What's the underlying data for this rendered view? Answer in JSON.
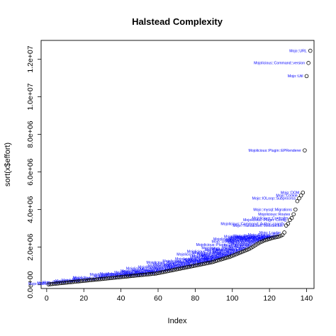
{
  "chart_data": {
    "type": "scatter",
    "title": "Halstead Complexity",
    "xlabel": "Index",
    "ylabel": "sort(x$effort)",
    "xlim": [
      -3,
      144
    ],
    "ylim": [
      -200000,
      13000000
    ],
    "x_ticks": [
      0,
      20,
      40,
      60,
      80,
      100,
      120,
      140
    ],
    "x_tick_labels": [
      "0",
      "20",
      "40",
      "60",
      "80",
      "100",
      "120",
      "140"
    ],
    "y_ticks": [
      0,
      2000000,
      4000000,
      6000000,
      8000000,
      10000000,
      12000000
    ],
    "y_tick_labels": [
      "0.0e+00",
      "2.0e+06",
      "4.0e+06",
      "6.0e+06",
      "8.0e+06",
      "1.0e+07",
      "1.2e+07"
    ],
    "label_color": "#0000ff",
    "point_color": "#000000",
    "points": [
      {
        "x": 1,
        "y": 20000
      },
      {
        "x": 2,
        "y": 30000
      },
      {
        "x": 3,
        "y": 40000
      },
      {
        "x": 4,
        "y": 50000
      },
      {
        "x": 5,
        "y": 60000
      },
      {
        "x": 6,
        "y": 70000
      },
      {
        "x": 7,
        "y": 80000
      },
      {
        "x": 8,
        "y": 90000
      },
      {
        "x": 9,
        "y": 100000
      },
      {
        "x": 10,
        "y": 110000
      },
      {
        "x": 11,
        "y": 120000
      },
      {
        "x": 12,
        "y": 130000
      },
      {
        "x": 13,
        "y": 140000
      },
      {
        "x": 14,
        "y": 150000
      },
      {
        "x": 15,
        "y": 160000
      },
      {
        "x": 16,
        "y": 170000
      },
      {
        "x": 17,
        "y": 180000
      },
      {
        "x": 18,
        "y": 190000
      },
      {
        "x": 19,
        "y": 200000
      },
      {
        "x": 20,
        "y": 210000
      },
      {
        "x": 21,
        "y": 220000
      },
      {
        "x": 22,
        "y": 230000
      },
      {
        "x": 23,
        "y": 240000
      },
      {
        "x": 24,
        "y": 250000
      },
      {
        "x": 25,
        "y": 260000
      },
      {
        "x": 26,
        "y": 270000
      },
      {
        "x": 27,
        "y": 280000
      },
      {
        "x": 28,
        "y": 290000
      },
      {
        "x": 29,
        "y": 300000
      },
      {
        "x": 30,
        "y": 310000
      },
      {
        "x": 31,
        "y": 320000
      },
      {
        "x": 32,
        "y": 330000
      },
      {
        "x": 33,
        "y": 340000
      },
      {
        "x": 34,
        "y": 350000
      },
      {
        "x": 35,
        "y": 360000
      },
      {
        "x": 36,
        "y": 370000
      },
      {
        "x": 37,
        "y": 380000
      },
      {
        "x": 38,
        "y": 390000
      },
      {
        "x": 39,
        "y": 400000
      },
      {
        "x": 40,
        "y": 410000
      },
      {
        "x": 41,
        "y": 420000
      },
      {
        "x": 42,
        "y": 430000
      },
      {
        "x": 43,
        "y": 440000
      },
      {
        "x": 44,
        "y": 450000
      },
      {
        "x": 45,
        "y": 460000
      },
      {
        "x": 46,
        "y": 470000
      },
      {
        "x": 47,
        "y": 480000
      },
      {
        "x": 48,
        "y": 490000
      },
      {
        "x": 49,
        "y": 500000
      },
      {
        "x": 50,
        "y": 510000
      },
      {
        "x": 51,
        "y": 520000
      },
      {
        "x": 52,
        "y": 530000
      },
      {
        "x": 53,
        "y": 540000
      },
      {
        "x": 54,
        "y": 550000
      },
      {
        "x": 55,
        "y": 560000
      },
      {
        "x": 56,
        "y": 570000
      },
      {
        "x": 57,
        "y": 580000
      },
      {
        "x": 58,
        "y": 590000
      },
      {
        "x": 59,
        "y": 600000
      },
      {
        "x": 60,
        "y": 620000
      },
      {
        "x": 61,
        "y": 640000
      },
      {
        "x": 62,
        "y": 660000
      },
      {
        "x": 63,
        "y": 680000
      },
      {
        "x": 64,
        "y": 700000
      },
      {
        "x": 65,
        "y": 720000
      },
      {
        "x": 66,
        "y": 740000
      },
      {
        "x": 67,
        "y": 760000
      },
      {
        "x": 68,
        "y": 780000
      },
      {
        "x": 69,
        "y": 800000
      },
      {
        "x": 70,
        "y": 820000
      },
      {
        "x": 71,
        "y": 840000
      },
      {
        "x": 72,
        "y": 860000
      },
      {
        "x": 73,
        "y": 880000
      },
      {
        "x": 74,
        "y": 900000
      },
      {
        "x": 75,
        "y": 920000
      },
      {
        "x": 76,
        "y": 940000
      },
      {
        "x": 77,
        "y": 960000
      },
      {
        "x": 78,
        "y": 980000
      },
      {
        "x": 79,
        "y": 1000000
      },
      {
        "x": 80,
        "y": 1020000
      },
      {
        "x": 81,
        "y": 1040000
      },
      {
        "x": 82,
        "y": 1060000
      },
      {
        "x": 83,
        "y": 1080000
      },
      {
        "x": 84,
        "y": 1100000
      },
      {
        "x": 85,
        "y": 1120000
      },
      {
        "x": 86,
        "y": 1140000
      },
      {
        "x": 87,
        "y": 1160000
      },
      {
        "x": 88,
        "y": 1180000
      },
      {
        "x": 89,
        "y": 1200000
      },
      {
        "x": 90,
        "y": 1230000
      },
      {
        "x": 91,
        "y": 1260000
      },
      {
        "x": 92,
        "y": 1290000
      },
      {
        "x": 93,
        "y": 1320000
      },
      {
        "x": 94,
        "y": 1350000
      },
      {
        "x": 95,
        "y": 1380000
      },
      {
        "x": 96,
        "y": 1410000
      },
      {
        "x": 97,
        "y": 1440000
      },
      {
        "x": 98,
        "y": 1470000
      },
      {
        "x": 99,
        "y": 1500000
      },
      {
        "x": 100,
        "y": 1540000
      },
      {
        "x": 101,
        "y": 1580000
      },
      {
        "x": 102,
        "y": 1620000
      },
      {
        "x": 103,
        "y": 1660000
      },
      {
        "x": 104,
        "y": 1700000
      },
      {
        "x": 105,
        "y": 1740000
      },
      {
        "x": 106,
        "y": 1780000
      },
      {
        "x": 107,
        "y": 1820000
      },
      {
        "x": 108,
        "y": 1860000
      },
      {
        "x": 109,
        "y": 1900000
      },
      {
        "x": 110,
        "y": 1960000
      },
      {
        "x": 111,
        "y": 2020000
      },
      {
        "x": 112,
        "y": 2080000
      },
      {
        "x": 113,
        "y": 2140000
      },
      {
        "x": 114,
        "y": 2200000
      },
      {
        "x": 115,
        "y": 2260000
      },
      {
        "x": 116,
        "y": 2300000
      },
      {
        "x": 117,
        "y": 2350000
      },
      {
        "x": 118,
        "y": 2380000
      },
      {
        "x": 119,
        "y": 2410000
      },
      {
        "x": 120,
        "y": 2440000
      },
      {
        "x": 121,
        "y": 2470000
      },
      {
        "x": 122,
        "y": 2500000
      },
      {
        "x": 123,
        "y": 2520000
      },
      {
        "x": 124,
        "y": 2540000
      },
      {
        "x": 125,
        "y": 2560000
      },
      {
        "x": 126,
        "y": 2600000
      },
      {
        "x": 127,
        "y": 2650000
      },
      {
        "x": 128,
        "y": 2780000
      },
      {
        "x": 129,
        "y": 3150000
      },
      {
        "x": 130,
        "y": 3250000
      },
      {
        "x": 131,
        "y": 3450000
      },
      {
        "x": 132,
        "y": 3550000
      },
      {
        "x": 133,
        "y": 3750000
      },
      {
        "x": 134,
        "y": 4000000
      },
      {
        "x": 135,
        "y": 4450000
      },
      {
        "x": 136,
        "y": 4600000
      },
      {
        "x": 137,
        "y": 4750000
      },
      {
        "x": 138,
        "y": 4900000
      },
      {
        "x": 139,
        "y": 7150000
      },
      {
        "x": 140,
        "y": 11100000
      },
      {
        "x": 141,
        "y": 11800000
      },
      {
        "x": 142,
        "y": 12450000
      }
    ],
    "labels": [
      {
        "x": 142,
        "y": 12450000,
        "text": "Mojo::URL"
      },
      {
        "x": 141,
        "y": 11800000,
        "text": "Mojolicious::Command::version"
      },
      {
        "x": 140,
        "y": 11100000,
        "text": "Mojo::Util"
      },
      {
        "x": 139,
        "y": 7150000,
        "text": "Mojolicious::Plugin::EPRenderer"
      },
      {
        "x": 138,
        "y": 4900000,
        "text": "Mojo::DOM"
      },
      {
        "x": 137,
        "y": 4750000,
        "text": "Mojo::Cookie"
      },
      {
        "x": 136,
        "y": 4600000,
        "text": "Mojo::IOLoop::Subprocess"
      },
      {
        "x": 134,
        "y": 4000000,
        "text": "Mojo::mysql::Migrations"
      },
      {
        "x": 128,
        "y": 2780000,
        "text": "Mojo::Loader"
      },
      {
        "x": 133,
        "y": 3750000,
        "text": "Mojolicious::Routes"
      },
      {
        "x": 132,
        "y": 3550000,
        "text": "Mojolicious::Controller"
      },
      {
        "x": 131,
        "y": 3450000,
        "text": "Mojolicious::Plugin::Config"
      },
      {
        "x": 130,
        "y": 3250000,
        "text": "Mojolicious::Command::Author::cpanify"
      },
      {
        "x": 129,
        "y": 3150000,
        "text": "Mojo::Transaction::WebSocket"
      },
      {
        "x": 127,
        "y": 2650000,
        "text": "Mojo::Reactor::Poll"
      },
      {
        "x": 126,
        "y": 2600000,
        "text": "Mojo::Message::Response"
      },
      {
        "x": 125,
        "y": 2560000,
        "text": "Mojolicious::Plugin::TagHelpers"
      },
      {
        "x": 124,
        "y": 2540000,
        "text": "Mojo::Server::Daemon"
      },
      {
        "x": 123,
        "y": 2520000,
        "text": "Mojo::Message::Request"
      },
      {
        "x": 122,
        "y": 2500000,
        "text": "Mojolicious::Validator"
      },
      {
        "x": 121,
        "y": 2470000,
        "text": "Mojo::Content::MultiPart"
      },
      {
        "x": 120,
        "y": 2440000,
        "text": "Mojolicious::Command::daemon"
      },
      {
        "x": 119,
        "y": 2410000,
        "text": "Mojo::Server::Prefork"
      },
      {
        "x": 118,
        "y": 2380000,
        "text": "Mojo::IOLoop::Stream"
      },
      {
        "x": 117,
        "y": 2350000,
        "text": "Mojolicious::Renderer"
      },
      {
        "x": 116,
        "y": 2300000,
        "text": "Mojo::UserAgent::Transactor"
      },
      {
        "x": 115,
        "y": 2260000,
        "text": "Mojolicious::Static"
      },
      {
        "x": 114,
        "y": 2200000,
        "text": "Mojo::Headers"
      },
      {
        "x": 113,
        "y": 2140000,
        "text": "Mojolicious::Plugin::DefaultHelpers"
      },
      {
        "x": 112,
        "y": 2080000,
        "text": "Mojo::Asset::File"
      },
      {
        "x": 111,
        "y": 2020000,
        "text": "Mojo::JSON"
      },
      {
        "x": 110,
        "y": 1960000,
        "text": "Mojolicious::Routes::Pattern"
      },
      {
        "x": 109,
        "y": 1900000,
        "text": "Mojo::IOLoop::Client"
      },
      {
        "x": 108,
        "y": 1860000,
        "text": "Mojolicious::Commands"
      },
      {
        "x": 107,
        "y": 1820000,
        "text": "Mojo::Collection"
      },
      {
        "x": 106,
        "y": 1780000,
        "text": "Mojolicious::Plugin::JSONConfig"
      },
      {
        "x": 105,
        "y": 1740000,
        "text": "Mojo::Template"
      },
      {
        "x": 104,
        "y": 1700000,
        "text": "Mojolicious::Routes::Route"
      },
      {
        "x": 103,
        "y": 1660000,
        "text": "Mojo::Date"
      },
      {
        "x": 102,
        "y": 1620000,
        "text": "Mojolicious::Plugin::PODRenderer"
      },
      {
        "x": 101,
        "y": 1580000,
        "text": "Mojo::Parameters"
      },
      {
        "x": 100,
        "y": 1540000,
        "text": "Mojolicious::Types"
      },
      {
        "x": 99,
        "y": 1500000,
        "text": "Mojo::IOLoop::Server"
      },
      {
        "x": 98,
        "y": 1470000,
        "text": "Mojolicious::Sessions"
      },
      {
        "x": 97,
        "y": 1440000,
        "text": "Mojo::Path"
      },
      {
        "x": 96,
        "y": 1410000,
        "text": "Mojo::Home"
      },
      {
        "x": 95,
        "y": 1380000,
        "text": "Mojolicious::Command::get"
      },
      {
        "x": 94,
        "y": 1350000,
        "text": "Mojo::Server::CGI"
      },
      {
        "x": 93,
        "y": 1320000,
        "text": "Mojolicious::Plugins"
      },
      {
        "x": 92,
        "y": 1290000,
        "text": "Mojo::ByteStream"
      },
      {
        "x": 91,
        "y": 1260000,
        "text": "Mojolicious::Command::routes"
      },
      {
        "x": 90,
        "y": 1230000,
        "text": "Mojo::Asset::Memory"
      },
      {
        "x": 88,
        "y": 1180000,
        "text": "Mojolicious::Plugin::HeaderCondition"
      },
      {
        "x": 86,
        "y": 1140000,
        "text": "Mojo::Content::Single"
      },
      {
        "x": 84,
        "y": 1100000,
        "text": "Mojolicious::Command::eval"
      },
      {
        "x": 82,
        "y": 1060000,
        "text": "Mojo::Server::PSGI"
      },
      {
        "x": 80,
        "y": 1020000,
        "text": "Mojolicious::Command::cgi"
      },
      {
        "x": 78,
        "y": 980000,
        "text": "Mojo::Upload"
      },
      {
        "x": 76,
        "y": 940000,
        "text": "Mojolicious::Command::psgi"
      },
      {
        "x": 74,
        "y": 900000,
        "text": "Mojo::Exception"
      },
      {
        "x": 72,
        "y": 860000,
        "text": "Mojolicious::Command::prefork"
      },
      {
        "x": 70,
        "y": 820000,
        "text": "Mojo::Server::Morbo"
      },
      {
        "x": 68,
        "y": 780000,
        "text": "Mojo::Cookie::Request"
      },
      {
        "x": 66,
        "y": 740000,
        "text": "Mojolicious::Command::test"
      },
      {
        "x": 64,
        "y": 700000,
        "text": "Mojo::Cookie::Response"
      },
      {
        "x": 62,
        "y": 660000,
        "text": "Mojolicious::Routes::Match"
      },
      {
        "x": 60,
        "y": 620000,
        "text": "Mojo::Reactor::EV"
      },
      {
        "x": 58,
        "y": 590000,
        "text": "Mojolicious::Command::version"
      },
      {
        "x": 56,
        "y": 570000,
        "text": "Mojo::Transaction::HTTP"
      },
      {
        "x": 54,
        "y": 550000,
        "text": "Mojolicious::Command::generate"
      },
      {
        "x": 52,
        "y": 530000,
        "text": "Mojo::Log"
      },
      {
        "x": 48,
        "y": 490000,
        "text": "Mojo::EventEmitter"
      },
      {
        "x": 44,
        "y": 450000,
        "text": "Mojolicious::Plugin"
      },
      {
        "x": 40,
        "y": 410000,
        "text": "Mojo::Base"
      },
      {
        "x": 36,
        "y": 370000,
        "text": "Mojolicious::Command"
      },
      {
        "x": 32,
        "y": 330000,
        "text": "Mojo::Transaction"
      },
      {
        "x": 28,
        "y": 290000,
        "text": "Mojo::Content"
      },
      {
        "x": 24,
        "y": 250000,
        "text": "Mojolicious::Lite"
      },
      {
        "x": 20,
        "y": 210000,
        "text": "Mojo::Message"
      },
      {
        "x": 16,
        "y": 170000,
        "text": "Mojo::Asset"
      },
      {
        "x": 12,
        "y": 130000,
        "text": "Mojo::Reactor"
      },
      {
        "x": 8,
        "y": 90000,
        "text": "Mojo::Server"
      },
      {
        "x": 4,
        "y": 50000,
        "text": "Mojo::IOLoop"
      }
    ]
  }
}
